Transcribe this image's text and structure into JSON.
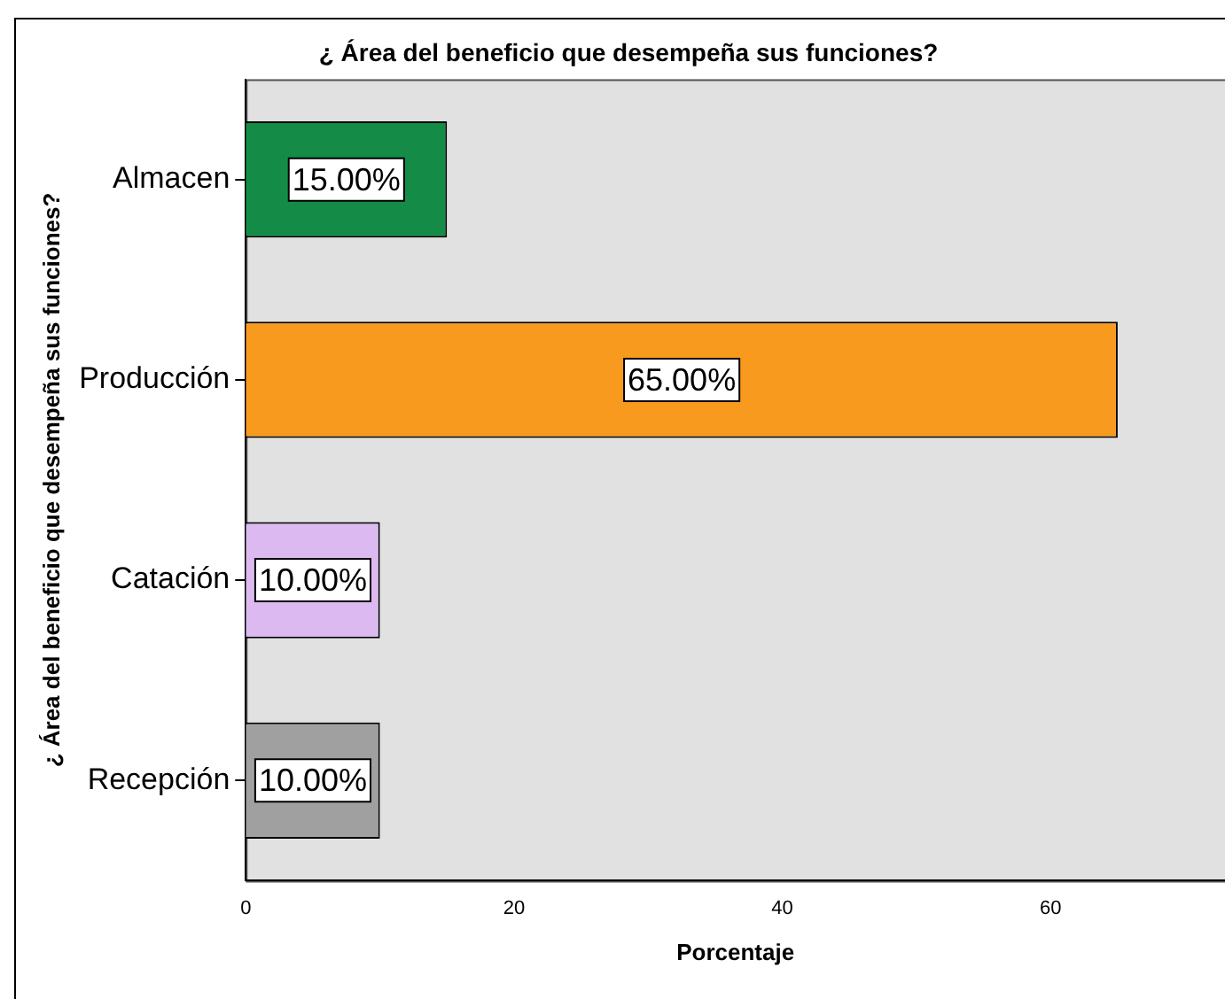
{
  "chart_data": {
    "type": "bar",
    "orientation": "horizontal",
    "title": "¿ Área del beneficio que desempeña sus funciones?",
    "xlabel": "Porcentaje",
    "ylabel": "¿ Área del beneficio que desempeña sus funciones?",
    "categories": [
      "Almacen",
      "Producción",
      "Catación",
      "Recepción"
    ],
    "values": [
      15,
      65,
      10,
      10
    ],
    "colors": [
      "#148c47",
      "#f89a1e",
      "#dcb9f0",
      "#a0a0a0"
    ],
    "value_labels": [
      "15.00%",
      "65.00%",
      "10.00%",
      "10.00%"
    ],
    "xlim": [
      0,
      73
    ],
    "xticks": [
      0,
      20,
      40,
      60
    ],
    "grid": false,
    "legend": false
  }
}
